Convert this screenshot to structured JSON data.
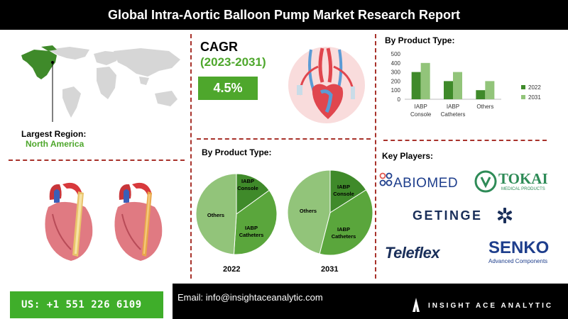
{
  "header": {
    "title": "Global Intra-Aortic Balloon Pump Market Research Report"
  },
  "region": {
    "label": "Largest Region:",
    "value": "North America"
  },
  "cagr": {
    "title": "CAGR",
    "period": "(2023-2031)",
    "value": "4.5%"
  },
  "pie_section": {
    "title": "By Product Type:",
    "years": [
      "2022",
      "2031"
    ]
  },
  "bar_section": {
    "title": "By Product Type:"
  },
  "key_players": {
    "title": "Key Players:",
    "logos": [
      "ABIOMED",
      "TOKAI",
      "MEDICAL PRODUCTS",
      "GETINGE",
      "Teleflex",
      "SENKO",
      "Advanced Components"
    ]
  },
  "contact": {
    "phone": "US: +1 551 226 6109",
    "email": "Email: info@insightaceanalytic.com",
    "company": "INSIGHT ACE ANALYTIC"
  },
  "colors": {
    "green_dark": "#3f8a2a",
    "green_mid": "#5aa63c",
    "green_light": "#92c47a",
    "accent_red": "#a8322b"
  },
  "chart_data": [
    {
      "type": "bar",
      "title": "By Product Type:",
      "categories": [
        "IABP Console",
        "IABP Catheters",
        "Others"
      ],
      "series": [
        {
          "name": "2022",
          "values": [
            300,
            200,
            100
          ]
        },
        {
          "name": "2031",
          "values": [
            400,
            300,
            200
          ]
        }
      ],
      "yticks": [
        "0",
        "100",
        "200",
        "300",
        "400",
        "500"
      ],
      "ylim": [
        0,
        500
      ],
      "legend": "right"
    },
    {
      "type": "pie",
      "title": "2022",
      "labels": [
        "IABP Console",
        "IABP Catheters",
        "Others"
      ],
      "values": [
        15,
        36,
        49
      ]
    },
    {
      "type": "pie",
      "title": "2031",
      "labels": [
        "IABP Console",
        "IABP Catheters",
        "Others"
      ],
      "values": [
        16,
        38,
        46
      ]
    }
  ]
}
